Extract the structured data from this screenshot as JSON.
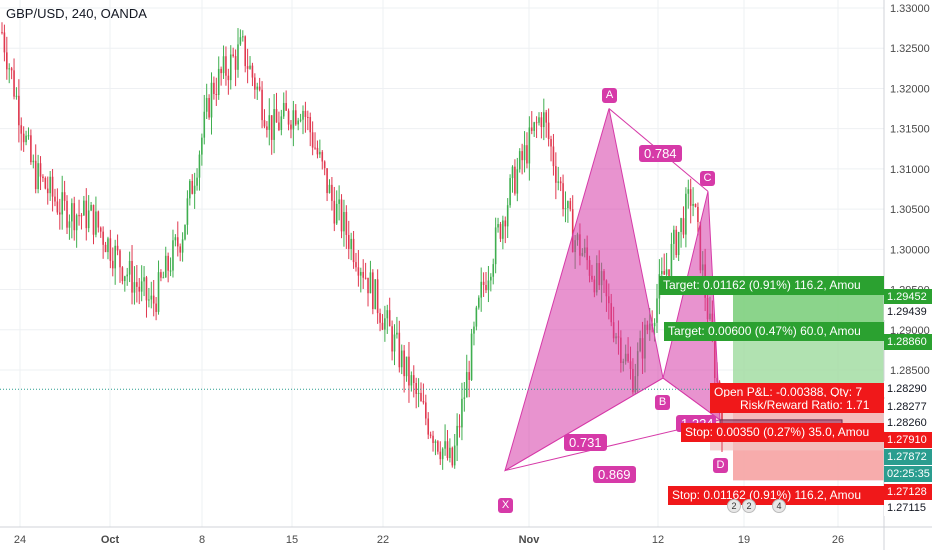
{
  "header": {
    "title": "GBP/USD, 240, OANDA"
  },
  "colors": {
    "up": "#3fae4f",
    "down": "#e0384f",
    "pattern_fill": "#d63aa8",
    "target_green": "#2ba130",
    "stop_red": "#f0181a",
    "grid": "#eef0f3",
    "axis_text": "#4a4a4a"
  },
  "right_axis_tags": [
    {
      "value": "1.29452",
      "style": "green"
    },
    {
      "value": "1.29439",
      "style": "plain"
    },
    {
      "value": "1.28860",
      "style": "green"
    },
    {
      "value": "1.28290",
      "style": "plain"
    },
    {
      "value": "1.28277",
      "style": "plain"
    },
    {
      "value": "1.28260",
      "style": "plain"
    },
    {
      "value": "1.27910",
      "style": "red"
    },
    {
      "value": "1.27872",
      "style": "teal"
    },
    {
      "value": "02:25:35",
      "style": "teal"
    },
    {
      "value": "1.27128",
      "style": "red"
    },
    {
      "value": "1.27115",
      "style": "plain"
    }
  ],
  "positions": {
    "target1": "Target: 0.01162 (0.91%) 116.2, Amou",
    "target2": "Target: 0.00600 (0.47%) 60.0, Amou",
    "open_pl": "Open P&L: -0.00388, Qty: 7",
    "rr": "Risk/Reward Ratio: 1.71",
    "stop1": "Stop: 0.00350 (0.27%) 35.0, Amou",
    "stop2": "Stop: 0.01162 (0.91%) 116.2, Amou",
    "partial_ratio": "1.224"
  },
  "pattern": {
    "points": [
      "X",
      "A",
      "B",
      "C",
      "D"
    ],
    "ratios": {
      "xa_ab": "0.784",
      "xb": "0.731",
      "xd": "0.869"
    }
  },
  "events": [
    "2",
    "2",
    "4"
  ],
  "chart_data": {
    "type": "candlestick",
    "title": "GBP/USD, 240, OANDA",
    "x_tick_labels": [
      "24",
      "Oct",
      "8",
      "15",
      "22",
      "Nov",
      "12",
      "19",
      "26"
    ],
    "y_tick_labels": [
      "1.33000",
      "1.32500",
      "1.32000",
      "1.31500",
      "1.31000",
      "1.30500",
      "1.30000",
      "1.29500",
      "1.29000",
      "1.28500"
    ],
    "ylim": [
      1.2695,
      1.3315
    ],
    "grid": true,
    "harmonic_pattern": {
      "X": 1.2725,
      "A": 1.3175,
      "B": 1.284,
      "C": 1.3072,
      "D": 1.2788
    },
    "levels": {
      "target_1": 1.29452,
      "target_2": 1.2886,
      "entry": 1.2829,
      "stop_1": 1.2791,
      "stop_2": 1.27128,
      "last": 1.27872
    },
    "approx_path": [
      {
        "date": "Sep 21",
        "close": 1.327
      },
      {
        "date": "Sep 24",
        "close": 1.31
      },
      {
        "date": "Sep 27",
        "close": 1.305
      },
      {
        "date": "Oct 1",
        "close": 1.304
      },
      {
        "date": "Oct 4",
        "close": 1.298
      },
      {
        "date": "Oct 6",
        "close": 1.293
      },
      {
        "date": "Oct 8",
        "close": 1.302
      },
      {
        "date": "Oct 11",
        "close": 1.32
      },
      {
        "date": "Oct 15",
        "close": 1.325
      },
      {
        "date": "Oct 17",
        "close": 1.315
      },
      {
        "date": "Oct 19",
        "close": 1.318
      },
      {
        "date": "Oct 22",
        "close": 1.306
      },
      {
        "date": "Oct 24",
        "close": 1.298
      },
      {
        "date": "Oct 26",
        "close": 1.289
      },
      {
        "date": "Oct 28",
        "close": 1.28
      },
      {
        "date": "Oct 30",
        "close": 1.273
      },
      {
        "date": "Nov 1",
        "close": 1.295
      },
      {
        "date": "Nov 5",
        "close": 1.308
      },
      {
        "date": "Nov 7",
        "close": 1.317
      },
      {
        "date": "Nov 9",
        "close": 1.302
      },
      {
        "date": "Nov 11",
        "close": 1.295
      },
      {
        "date": "Nov 12",
        "close": 1.284
      },
      {
        "date": "Nov 14",
        "close": 1.296
      },
      {
        "date": "Nov 15",
        "close": 1.307
      },
      {
        "date": "Nov 16",
        "close": 1.2788
      }
    ]
  }
}
